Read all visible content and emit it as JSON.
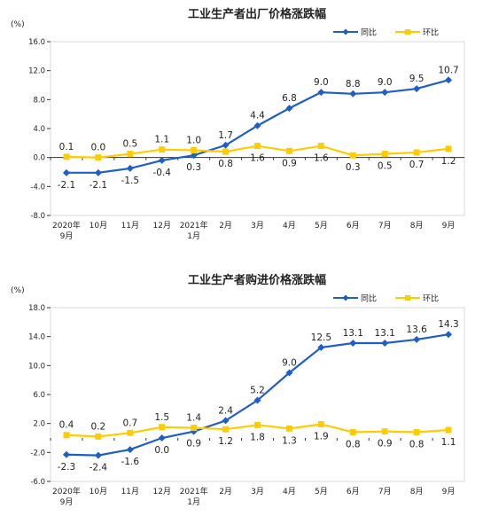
{
  "colors": {
    "yoy": "#1f5fc4",
    "mom": "#ffcc00",
    "grid": "#d9d9d9",
    "axis": "#333333",
    "text": "#222222"
  },
  "chart_data": [
    {
      "type": "line",
      "title": "工业生产者出厂价格涨跌幅",
      "ylabel": "(%)",
      "ylim": [
        -8.0,
        16.0
      ],
      "yticks": [
        "16.0",
        "12.0",
        "8.0",
        "4.0",
        "0.0",
        "-4.0",
        "-8.0"
      ],
      "categories": [
        "2020年\n9月",
        "10月",
        "11月",
        "12月",
        "2021年\n1月",
        "2月",
        "3月",
        "4月",
        "5月",
        "6月",
        "7月",
        "8月",
        "9月"
      ],
      "legend_position": "top-right",
      "series": [
        {
          "name": "同比",
          "color": "#1f5fc4",
          "values": [
            -2.1,
            -2.1,
            -1.5,
            -0.4,
            0.3,
            1.7,
            4.4,
            6.8,
            9.0,
            8.8,
            9.0,
            9.5,
            10.7
          ]
        },
        {
          "name": "环比",
          "color": "#ffcc00",
          "values": [
            0.1,
            0.0,
            0.5,
            1.1,
            1.0,
            0.8,
            1.6,
            0.9,
            1.6,
            0.3,
            0.5,
            0.7,
            1.2
          ]
        }
      ]
    },
    {
      "type": "line",
      "title": "工业生产者购进价格涨跌幅",
      "ylabel": "(%)",
      "ylim": [
        -6.0,
        18.0
      ],
      "yticks": [
        "18.0",
        "14.0",
        "10.0",
        "6.0",
        "2.0",
        "-2.0",
        "-6.0"
      ],
      "categories": [
        "2020年\n9月",
        "10月",
        "11月",
        "12月",
        "2021年\n1月",
        "2月",
        "3月",
        "4月",
        "5月",
        "6月",
        "7月",
        "8月",
        "9月"
      ],
      "legend_position": "top-right",
      "series": [
        {
          "name": "同比",
          "color": "#1f5fc4",
          "values": [
            -2.3,
            -2.4,
            -1.6,
            0.0,
            0.9,
            2.4,
            5.2,
            9.0,
            12.5,
            13.1,
            13.1,
            13.6,
            14.3
          ]
        },
        {
          "name": "环比",
          "color": "#ffcc00",
          "values": [
            0.4,
            0.2,
            0.7,
            1.5,
            1.4,
            1.2,
            1.8,
            1.3,
            1.9,
            0.8,
            0.9,
            0.8,
            1.1
          ]
        }
      ]
    }
  ]
}
